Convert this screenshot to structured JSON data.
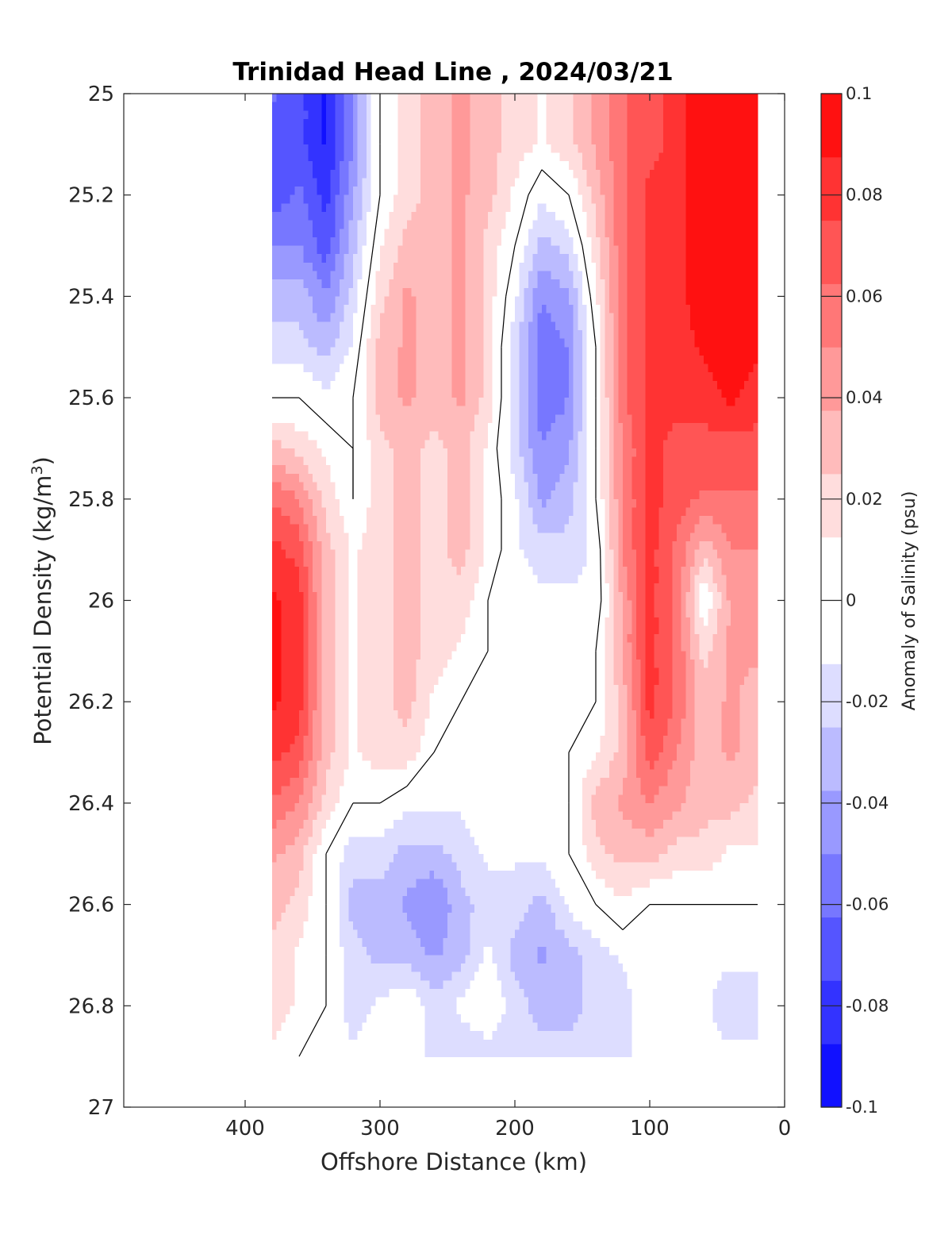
{
  "chart_data": {
    "type": "heatmap",
    "title": "Trinidad Head Line , 2024/03/21",
    "xlabel": "Offshore Distance (km)",
    "ylabel": "Potential Density (kg/m",
    "ylabel_superscript": "3",
    "ylabel_close": ")",
    "colorbar_label": "Anomaly of Salinity (psu)",
    "xlim": [
      490,
      0
    ],
    "x_reversed": true,
    "ylim": [
      25,
      27
    ],
    "y_reversed": true,
    "x_ticks": [
      400,
      300,
      200,
      100,
      0
    ],
    "x_tick_labels": [
      "400",
      "300",
      "200",
      "100",
      "0"
    ],
    "y_ticks": [
      25,
      25.2,
      25.4,
      25.6,
      25.8,
      26,
      26.2,
      26.4,
      26.6,
      26.8,
      27
    ],
    "y_tick_labels": [
      "25",
      "25.2",
      "25.4",
      "25.6",
      "25.8",
      "26",
      "26.2",
      "26.4",
      "26.6",
      "26.8",
      "27"
    ],
    "colorbar": {
      "min": -0.1,
      "max": 0.1,
      "levels": 16,
      "ticks": [
        0.1,
        0.08,
        0.06,
        0.04,
        0.02,
        0,
        -0.02,
        -0.04,
        -0.06,
        -0.08,
        -0.1
      ],
      "tick_labels": [
        "0.1",
        "0.08",
        "0.06",
        "0.04",
        "0.02",
        "0",
        "-0.02",
        "-0.04",
        "-0.06",
        "-0.08",
        "-0.1"
      ],
      "colormap": "blue-white-red",
      "neg_color": "#0000ff",
      "zero_color": "#ffffff",
      "pos_color": "#ff0000"
    },
    "data_extent": {
      "x": [
        380,
        20
      ],
      "y": [
        25,
        26.9
      ]
    },
    "x": [
      380,
      360,
      340,
      320,
      300,
      280,
      260,
      240,
      220,
      200,
      180,
      160,
      140,
      120,
      100,
      80,
      60,
      40,
      20
    ],
    "y": [
      25.0,
      25.1,
      25.2,
      25.3,
      25.4,
      25.5,
      25.6,
      25.7,
      25.8,
      25.9,
      26.0,
      26.1,
      26.2,
      26.3,
      26.4,
      26.5,
      26.6,
      26.7,
      26.8,
      26.9
    ],
    "values": [
      [
        -0.06,
        -0.07,
        -0.09,
        -0.05,
        0.0,
        0.02,
        0.03,
        0.04,
        0.03,
        0.02,
        0.01,
        0.02,
        0.04,
        0.06,
        0.07,
        0.08,
        0.1,
        0.1,
        0.1
      ],
      [
        -0.07,
        -0.07,
        -0.09,
        -0.05,
        0.0,
        0.02,
        0.03,
        0.04,
        0.03,
        0.02,
        0.01,
        0.02,
        0.04,
        0.06,
        0.07,
        0.08,
        0.1,
        0.1,
        0.1
      ],
      [
        -0.07,
        -0.06,
        -0.08,
        -0.04,
        0.0,
        0.02,
        0.03,
        0.04,
        0.03,
        0.01,
        -0.01,
        0.0,
        0.03,
        0.06,
        0.08,
        0.08,
        0.1,
        0.1,
        0.1
      ],
      [
        -0.05,
        -0.05,
        -0.07,
        -0.03,
        0.01,
        0.03,
        0.03,
        0.04,
        0.02,
        0.0,
        -0.03,
        -0.02,
        0.02,
        0.06,
        0.08,
        0.08,
        0.1,
        0.1,
        0.1
      ],
      [
        -0.03,
        -0.03,
        -0.05,
        -0.02,
        0.02,
        0.04,
        0.03,
        0.04,
        0.02,
        -0.01,
        -0.05,
        -0.04,
        0.01,
        0.06,
        0.08,
        0.08,
        0.1,
        0.1,
        0.1
      ],
      [
        -0.02,
        -0.02,
        -0.03,
        -0.01,
        0.03,
        0.04,
        0.03,
        0.04,
        0.02,
        -0.02,
        -0.06,
        -0.05,
        0.0,
        0.06,
        0.08,
        0.08,
        0.09,
        0.1,
        0.09
      ],
      [
        0.0,
        0.0,
        -0.01,
        0.0,
        0.03,
        0.04,
        0.03,
        0.04,
        0.02,
        -0.02,
        -0.06,
        -0.05,
        0.0,
        0.06,
        0.08,
        0.08,
        0.08,
        0.09,
        0.08
      ],
      [
        0.03,
        0.02,
        0.01,
        0.0,
        0.02,
        0.03,
        0.02,
        0.03,
        0.01,
        -0.02,
        -0.05,
        -0.04,
        0.0,
        0.05,
        0.08,
        0.07,
        0.07,
        0.07,
        0.07
      ],
      [
        0.06,
        0.05,
        0.02,
        0.0,
        0.02,
        0.03,
        0.02,
        0.03,
        0.01,
        -0.01,
        -0.04,
        -0.03,
        0.0,
        0.05,
        0.08,
        0.07,
        0.06,
        0.06,
        0.06
      ],
      [
        0.08,
        0.07,
        0.03,
        0.01,
        0.02,
        0.03,
        0.02,
        0.03,
        0.01,
        -0.01,
        -0.02,
        -0.02,
        -0.01,
        0.05,
        0.08,
        0.06,
        0.03,
        0.05,
        0.05
      ],
      [
        0.09,
        0.08,
        0.03,
        0.01,
        0.02,
        0.03,
        0.02,
        0.02,
        0.0,
        0.0,
        -0.01,
        -0.01,
        -0.01,
        0.04,
        0.08,
        0.06,
        0.0,
        0.04,
        0.04
      ],
      [
        0.09,
        0.08,
        0.03,
        0.01,
        0.02,
        0.03,
        0.02,
        0.01,
        0.0,
        0.0,
        0.0,
        0.0,
        0.0,
        0.04,
        0.08,
        0.06,
        0.02,
        0.04,
        0.04
      ],
      [
        0.09,
        0.08,
        0.03,
        0.01,
        0.02,
        0.03,
        0.01,
        0.0,
        0.0,
        0.0,
        0.0,
        0.0,
        0.0,
        0.03,
        0.08,
        0.06,
        0.03,
        0.04,
        0.03
      ],
      [
        0.08,
        0.07,
        0.03,
        0.01,
        0.02,
        0.02,
        0.0,
        -0.01,
        0.0,
        0.0,
        0.0,
        0.0,
        0.01,
        0.03,
        0.07,
        0.05,
        0.03,
        0.04,
        0.03
      ],
      [
        0.06,
        0.05,
        0.02,
        0.0,
        0.0,
        -0.01,
        -0.01,
        -0.01,
        0.0,
        0.0,
        0.0,
        0.0,
        0.03,
        0.04,
        0.05,
        0.04,
        0.03,
        0.03,
        0.02
      ],
      [
        0.04,
        0.03,
        0.0,
        -0.02,
        -0.02,
        -0.03,
        -0.03,
        -0.02,
        -0.01,
        -0.01,
        -0.01,
        0.0,
        0.02,
        0.03,
        0.03,
        0.02,
        0.02,
        0.01,
        0.01
      ],
      [
        0.03,
        0.02,
        0.0,
        -0.03,
        -0.03,
        -0.04,
        -0.05,
        -0.03,
        -0.02,
        -0.02,
        -0.03,
        -0.01,
        0.0,
        0.01,
        0.0,
        0.0,
        0.0,
        0.0,
        0.0
      ],
      [
        0.02,
        0.01,
        0.0,
        -0.02,
        -0.03,
        -0.03,
        -0.04,
        -0.03,
        -0.01,
        -0.03,
        -0.04,
        -0.03,
        -0.02,
        -0.01,
        0.0,
        0.0,
        -0.01,
        -0.01,
        -0.01
      ],
      [
        0.02,
        0.01,
        0.0,
        -0.02,
        -0.01,
        0.0,
        -0.02,
        -0.01,
        0.0,
        -0.02,
        -0.03,
        -0.03,
        -0.02,
        -0.02,
        0.0,
        0.0,
        -0.01,
        -0.02,
        -0.02
      ],
      [
        0.01,
        0.0,
        0.0,
        -0.01,
        0.0,
        0.0,
        -0.02,
        -0.02,
        -0.02,
        -0.02,
        -0.02,
        -0.02,
        -0.02,
        -0.02,
        0.0,
        0.0,
        -0.01,
        -0.01,
        -0.01
      ]
    ],
    "contour_levels": [
      0
    ]
  }
}
